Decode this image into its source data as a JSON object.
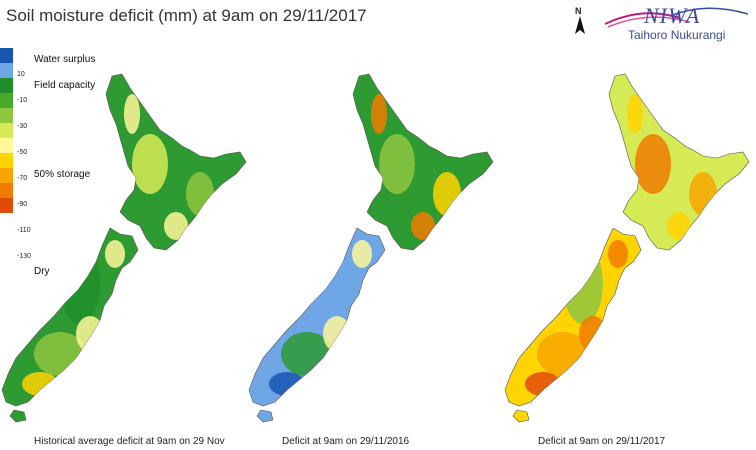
{
  "title": "Soil moisture deficit (mm) at  9am on 29/11/2017",
  "north": {
    "letter": "N",
    "icon": "north-arrow"
  },
  "logo": {
    "brand": "NIWA",
    "tagline": "Taihoro Nukurangi"
  },
  "legend": {
    "colors": [
      "#1a56b0",
      "#6fa6e6",
      "#1f8f2a",
      "#4aa82a",
      "#8ec63f",
      "#d6ea55",
      "#fff799",
      "#ffd400",
      "#f7a600",
      "#f07b00",
      "#e24a0a"
    ],
    "ticks": [
      "10",
      "-10",
      "-30",
      "-50",
      "-70",
      "-90",
      "-110",
      "-130"
    ],
    "labels": {
      "surplus": "Water surplus",
      "field": "Field capacity",
      "storage": "50% storage",
      "dry": "Dry"
    }
  },
  "maps": [
    {
      "caption": "Historical average deficit at 9am on 29 Nov",
      "style": "wet"
    },
    {
      "caption": "Deficit at  9am on 29/11/2016",
      "style": "mixed"
    },
    {
      "caption": "Deficit at  9am on 29/11/2017",
      "style": "dry"
    }
  ]
}
